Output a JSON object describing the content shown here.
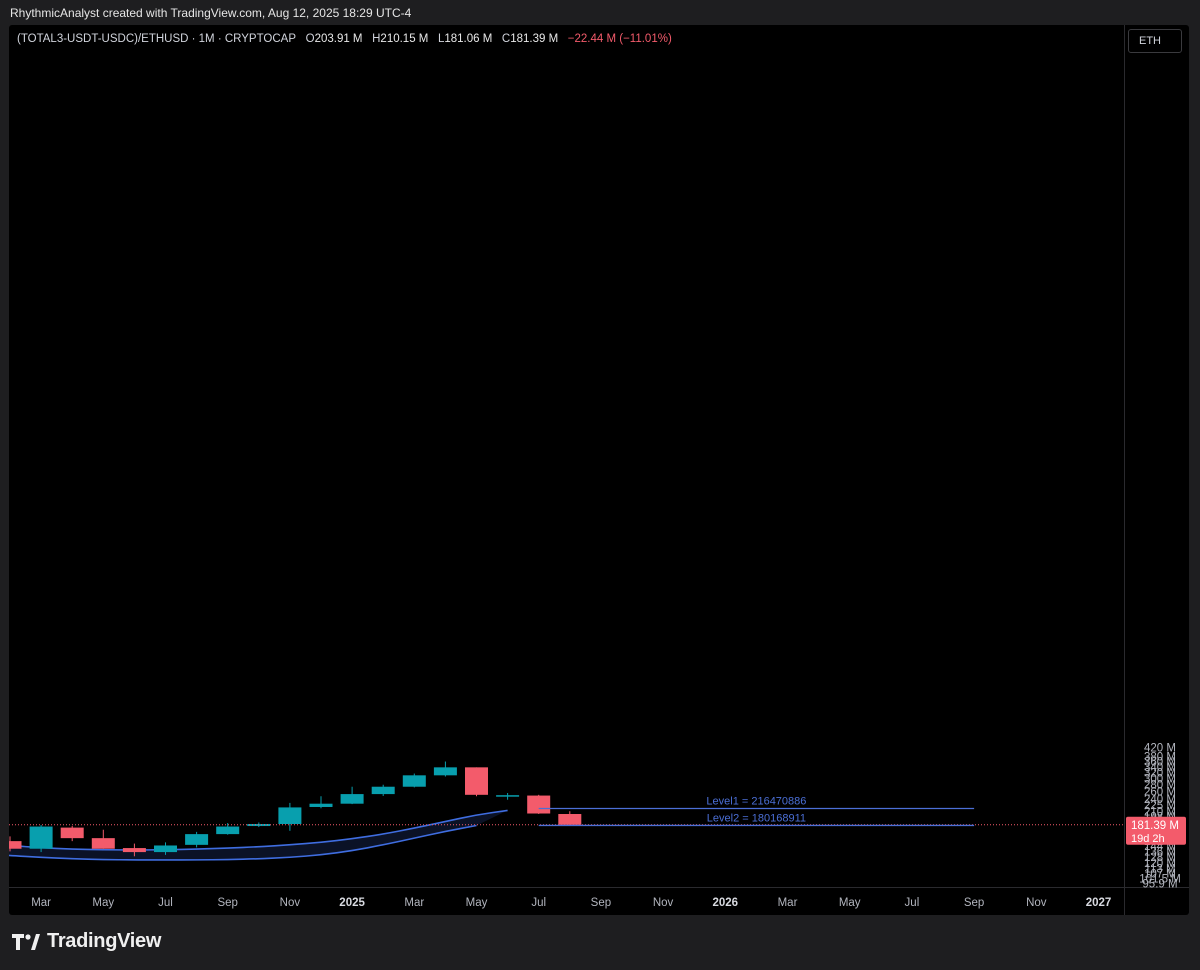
{
  "attribution": "RhythmicAnalyst created with TradingView.com, Aug 12, 2025 18:29 UTC-4",
  "legend": {
    "symbol": "(TOTAL3-USDT-USDC)/ETHUSD · 1M · CRYPTOCAP",
    "open_label": "O",
    "open": "203.91 M",
    "high_label": "H",
    "high": "210.15 M",
    "low_label": "L",
    "low": "181.06 M",
    "close_label": "C",
    "close": "181.39 M",
    "change": "−22.44 M (−11.01%)"
  },
  "currency": "ETH",
  "brand": "TradingView",
  "colors": {
    "up": "#089fae",
    "down": "#f35b6b",
    "band": "#3f6de0",
    "level": "#4b6fd6",
    "price_tag": "#f35b6b"
  },
  "chart_data": {
    "type": "candlestick",
    "interval": "1M",
    "scale": "log",
    "ylim_millions": [
      92,
      450
    ],
    "y_ticks": [
      "420 M",
      "380 M",
      "360 M",
      "340 M",
      "320 M",
      "300 M",
      "280 M",
      "260 M",
      "240 M",
      "225 M",
      "210 M",
      "198 M",
      "186 M",
      "174 M",
      "162 M",
      "152 M",
      "144 M",
      "136 M",
      "128 M",
      "120 M",
      "113 M",
      "107 M",
      "101.5 M",
      "95.9 M"
    ],
    "y_tick_values": [
      420,
      380,
      360,
      340,
      320,
      300,
      280,
      260,
      240,
      225,
      210,
      198,
      186,
      174,
      162,
      152,
      144,
      136,
      128,
      120,
      113,
      107,
      101.5,
      95.9
    ],
    "x_ticks": [
      {
        "label": "Mar",
        "i": 1,
        "bold": false
      },
      {
        "label": "May",
        "i": 3,
        "bold": false
      },
      {
        "label": "Jul",
        "i": 5,
        "bold": false
      },
      {
        "label": "Sep",
        "i": 7,
        "bold": false
      },
      {
        "label": "Nov",
        "i": 9,
        "bold": false
      },
      {
        "label": "2025",
        "i": 11,
        "bold": true
      },
      {
        "label": "Mar",
        "i": 13,
        "bold": false
      },
      {
        "label": "May",
        "i": 15,
        "bold": false
      },
      {
        "label": "Jul",
        "i": 17,
        "bold": false
      },
      {
        "label": "Sep",
        "i": 19,
        "bold": false
      },
      {
        "label": "Nov",
        "i": 21,
        "bold": false
      },
      {
        "label": "2026",
        "i": 23,
        "bold": true
      },
      {
        "label": "Mar",
        "i": 25,
        "bold": false
      },
      {
        "label": "May",
        "i": 27,
        "bold": false
      },
      {
        "label": "Jul",
        "i": 29,
        "bold": false
      },
      {
        "label": "Sep",
        "i": 31,
        "bold": false
      },
      {
        "label": "Nov",
        "i": 33,
        "bold": false
      },
      {
        "label": "2027",
        "i": 35,
        "bold": true
      }
    ],
    "candles": [
      {
        "month": "2024-01",
        "o": 152,
        "h": 160,
        "l": 136,
        "c": 140
      },
      {
        "month": "2024-02",
        "o": 140,
        "h": 181,
        "l": 135,
        "c": 178
      },
      {
        "month": "2024-03",
        "o": 176,
        "h": 179,
        "l": 152,
        "c": 157
      },
      {
        "month": "2024-04",
        "o": 157,
        "h": 172,
        "l": 140,
        "c": 140
      },
      {
        "month": "2024-05",
        "o": 141,
        "h": 148,
        "l": 129,
        "c": 135
      },
      {
        "month": "2024-06",
        "o": 135,
        "h": 150,
        "l": 131,
        "c": 145
      },
      {
        "month": "2024-07",
        "o": 146,
        "h": 168,
        "l": 142,
        "c": 164
      },
      {
        "month": "2024-08",
        "o": 164,
        "h": 185,
        "l": 163,
        "c": 178
      },
      {
        "month": "2024-09",
        "o": 179,
        "h": 186,
        "l": 177,
        "c": 183
      },
      {
        "month": "2024-10",
        "o": 183,
        "h": 230,
        "l": 170,
        "c": 219
      },
      {
        "month": "2024-11",
        "o": 220,
        "h": 247,
        "l": 217,
        "c": 228
      },
      {
        "month": "2024-12",
        "o": 228,
        "h": 274,
        "l": 227,
        "c": 253
      },
      {
        "month": "2025-01",
        "o": 253,
        "h": 280,
        "l": 248,
        "c": 274
      },
      {
        "month": "2025-02",
        "o": 274,
        "h": 316,
        "l": 272,
        "c": 310
      },
      {
        "month": "2025-03",
        "o": 310,
        "h": 360,
        "l": 306,
        "c": 338
      },
      {
        "month": "2025-04",
        "o": 338,
        "h": 338,
        "l": 247,
        "c": 251
      },
      {
        "month": "2025-05",
        "o": 250,
        "h": 256,
        "l": 238,
        "c": 250
      },
      {
        "month": "2025-06",
        "o": 249,
        "h": 251,
        "l": 204,
        "c": 205
      },
      {
        "month": "2025-07",
        "o": 203.91,
        "h": 210.15,
        "l": 181.06,
        "c": 181.39
      }
    ],
    "band_upper": [
      [
        -0.3,
        146.5
      ],
      [
        0,
        145
      ],
      [
        1,
        141.5
      ],
      [
        2,
        139.5
      ],
      [
        3,
        138.5
      ],
      [
        4,
        138
      ],
      [
        5,
        138.5
      ],
      [
        6,
        139.5
      ],
      [
        7,
        141
      ],
      [
        8,
        143
      ],
      [
        9,
        146
      ],
      [
        10,
        150
      ],
      [
        11,
        156
      ],
      [
        12,
        164
      ],
      [
        13,
        175
      ],
      [
        14,
        188
      ],
      [
        15,
        202
      ],
      [
        16,
        212
      ]
    ],
    "band_lower": [
      [
        -0.3,
        131
      ],
      [
        0,
        130
      ],
      [
        1,
        127.5
      ],
      [
        2,
        125.5
      ],
      [
        3,
        124.5
      ],
      [
        4,
        124
      ],
      [
        5,
        124
      ],
      [
        6,
        124
      ],
      [
        7,
        124.5
      ],
      [
        8,
        125.5
      ],
      [
        9,
        127.5
      ],
      [
        10,
        131
      ],
      [
        11,
        137
      ],
      [
        12,
        146
      ],
      [
        13,
        157
      ],
      [
        14,
        169
      ],
      [
        15,
        180
      ]
    ],
    "levels": [
      {
        "label": "Level1 =  216470886",
        "value": 216.470886,
        "x_start": 17.0,
        "x_end": 31.0
      },
      {
        "label": "Level2 =  180168911",
        "value": 180.168911,
        "x_start": 17.0,
        "x_end": 31.0
      }
    ],
    "last_price": {
      "value": 181.39,
      "label": "181.39 M",
      "countdown": "19d 2h"
    }
  }
}
